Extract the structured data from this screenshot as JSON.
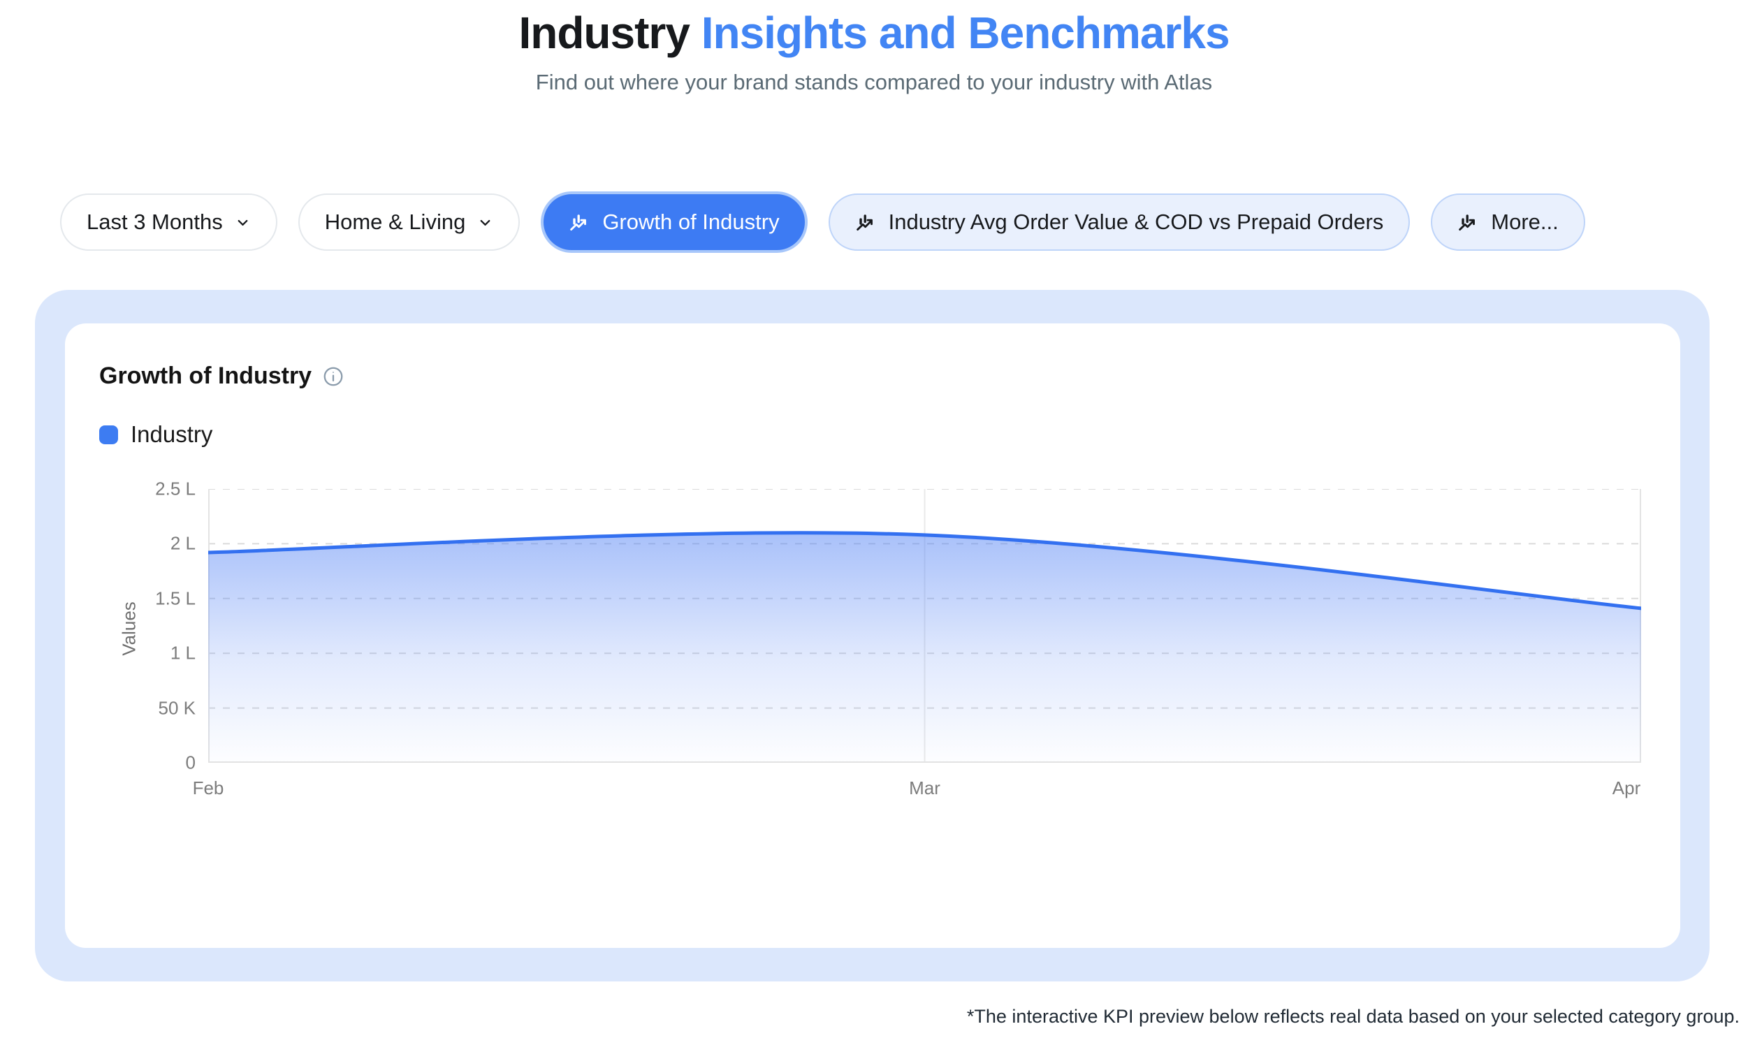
{
  "page": {
    "title_part1": "Industry",
    "title_part2": " Insights and Benchmarks",
    "subtitle": "Find out where your brand stands compared to your industry with Atlas",
    "footnote": "*The interactive KPI preview below reflects real data based on your selected category group."
  },
  "filters": [
    {
      "label": "Last 3 Months",
      "kind": "dropdown"
    },
    {
      "label": "Home & Living",
      "kind": "dropdown"
    },
    {
      "label": "Growth of Industry",
      "kind": "kpi",
      "active": true
    },
    {
      "label": "Industry Avg Order Value & COD vs Prepaid Orders",
      "kind": "kpi",
      "active": false
    },
    {
      "label": "More...",
      "kind": "kpi",
      "active": false
    }
  ],
  "card": {
    "title": "Growth of Industry",
    "legend": [
      {
        "label": "Industry",
        "color": "#3D7CF2"
      }
    ]
  },
  "chart_data": {
    "type": "area",
    "title": "Growth of Industry",
    "x": [
      "Feb",
      "Mar",
      "Apr"
    ],
    "series": [
      {
        "name": "Industry",
        "values": [
          192000,
          208000,
          141000
        ]
      }
    ],
    "y_ticks": [
      "2.5 L",
      "2 L",
      "1.5 L",
      "1 L",
      "50 K",
      "0"
    ],
    "y_tick_values": [
      250000,
      200000,
      150000,
      100000,
      50000,
      0
    ],
    "ylabel": "Values",
    "ylim": [
      0,
      250000
    ],
    "grid": "horizontal-dashed, vertical line at Mar",
    "legend_position": "top-left",
    "line_color": "#3370F0",
    "area_fill": "#5282F5"
  },
  "colors": {
    "title_blue": "#4285F4",
    "accent_blue": "#3D7BF3",
    "active_ring": "#A8C7FA",
    "pill_tint_bg": "#E9F0FD",
    "pill_tint_border": "#BED4F9",
    "pill_border": "#E4E8EC",
    "outer_card_bg": "#DBE7FC",
    "subtitle": "#5A6A74",
    "text_dark": "#17191C",
    "axis_text": "#7C7C7C",
    "grid_line": "#DBDBDB"
  }
}
